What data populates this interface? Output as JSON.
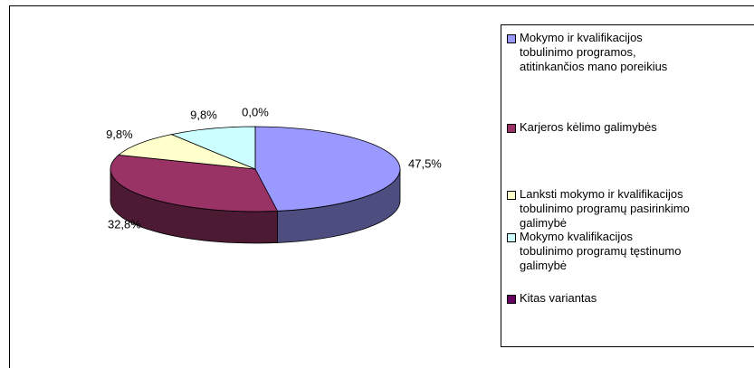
{
  "chart_data": {
    "type": "pie3d",
    "categories": [
      "Mokymo ir kvalifikacijos\ntobulinimo programos,\natitinkančios mano poreikius",
      "Karjeros kėlimo galimybės",
      "Lanksti mokymo ir kvalifikacijos\ntobulinimo programų pasirinkimo\ngalimybė",
      "Mokymo kvalifikacijos\ntobulinimo programų tęstinumo\ngalimybė",
      "Kitas variantas"
    ],
    "values": [
      47.5,
      32.8,
      9.8,
      9.8,
      0.0
    ],
    "value_labels": [
      "47,5%",
      "32,8%",
      "9,8%",
      "9,8%",
      "0,0%"
    ],
    "colors": [
      "#9999ff",
      "#993366",
      "#ffffcc",
      "#ccffff",
      "#660066"
    ],
    "legend": "right"
  }
}
